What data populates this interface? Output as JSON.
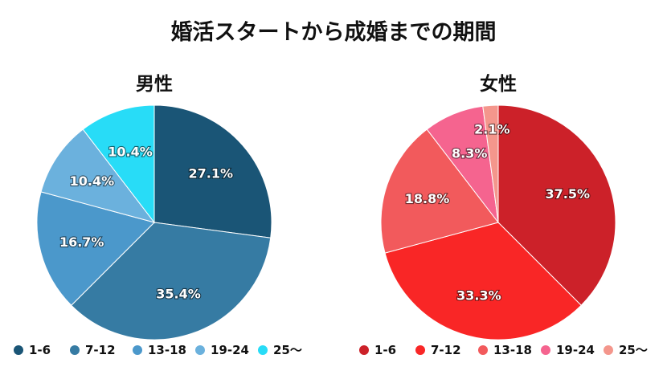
{
  "title": "婚活スタートから成婚までの期間",
  "chart_data": [
    {
      "type": "pie",
      "title": "男性",
      "categories": [
        "1-6",
        "7-12",
        "13-18",
        "19-24",
        "25〜"
      ],
      "values": [
        27.1,
        35.4,
        16.7,
        10.4,
        10.4
      ],
      "labels": [
        "27.1%",
        "35.4%",
        "16.7%",
        "10.4%",
        "10.4%"
      ],
      "colors": [
        "#1a5576",
        "#367ba3",
        "#4b98cb",
        "#6bb1dd",
        "#28dcf7"
      ],
      "legend_position": "bottom"
    },
    {
      "type": "pie",
      "title": "女性",
      "categories": [
        "1-6",
        "7-12",
        "13-18",
        "19-24",
        "25〜"
      ],
      "values": [
        37.5,
        33.3,
        18.8,
        8.3,
        2.1
      ],
      "labels": [
        "37.5%",
        "33.3%",
        "18.8%",
        "8.3%",
        "2.1%"
      ],
      "colors": [
        "#cc2129",
        "#f92626",
        "#f25a5c",
        "#f5648f",
        "#f4968c"
      ],
      "legend_position": "bottom"
    }
  ]
}
